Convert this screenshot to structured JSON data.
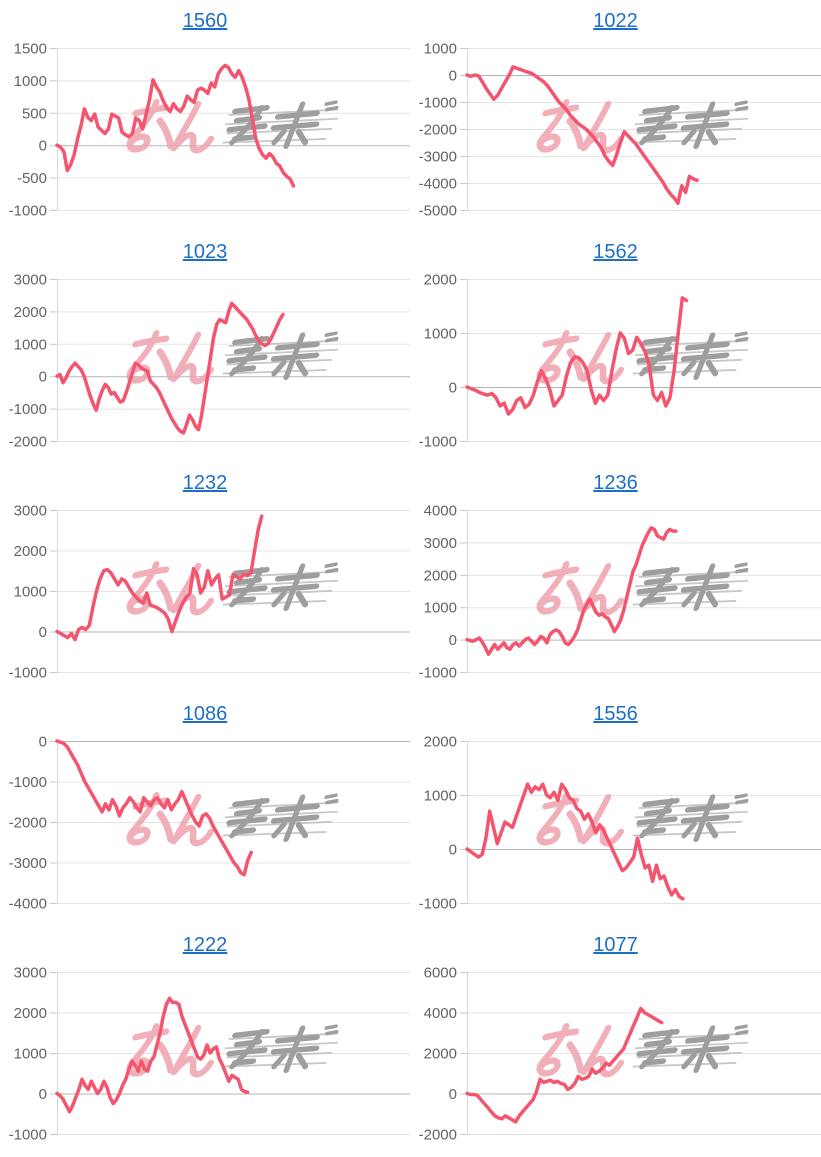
{
  "colors": {
    "line": "#f4556e",
    "title_link": "#1c6fc8",
    "tick_label": "#646464",
    "grid": "#e4e4e4",
    "grid_zero": "#b5b5b5",
    "axis": "#d9d9d9",
    "tick_stub": "#c9c9c9",
    "watermark_pink": "#efa3ad",
    "watermark_gray": "#9e9e9e",
    "watermark_speedline": "#c2c2c2"
  },
  "watermark": {
    "name": "site-watermark"
  },
  "chart_data": [
    {
      "type": "line",
      "title": "1560",
      "ylim": [
        -1000,
        1500
      ],
      "y_ticks": [
        1500,
        1000,
        500,
        0,
        -500,
        -1000
      ],
      "span": 0.67,
      "xlabel": "",
      "ylabel": "",
      "legend": "none",
      "grid": "horizontal",
      "values": [
        0,
        -30,
        -100,
        -390,
        -300,
        -150,
        100,
        300,
        560,
        430,
        380,
        480,
        280,
        230,
        180,
        250,
        480,
        450,
        420,
        200,
        160,
        130,
        180,
        420,
        380,
        250,
        480,
        700,
        1010,
        900,
        820,
        680,
        580,
        520,
        640,
        560,
        520,
        600,
        760,
        700,
        660,
        850,
        880,
        850,
        800,
        960,
        900,
        1100,
        1180,
        1230,
        1200,
        1100,
        1050,
        1150,
        1050,
        900,
        700,
        400,
        100,
        -50,
        -150,
        -200,
        -130,
        -180,
        -280,
        -320,
        -420,
        -480,
        -520,
        -630
      ]
    },
    {
      "type": "line",
      "title": "1022",
      "ylim": [
        -5000,
        1000
      ],
      "y_ticks": [
        1000,
        0,
        -1000,
        -2000,
        -3000,
        -4000,
        -5000
      ],
      "span": 0.65,
      "xlabel": "",
      "ylabel": "",
      "legend": "none",
      "grid": "horizontal",
      "values": [
        0,
        -50,
        0,
        -30,
        -250,
        -500,
        -700,
        -900,
        -750,
        -500,
        -250,
        0,
        300,
        250,
        200,
        150,
        100,
        50,
        -50,
        -150,
        -250,
        -400,
        -600,
        -800,
        -1000,
        -1150,
        -1300,
        -1500,
        -1650,
        -1800,
        -1900,
        -2000,
        -2150,
        -2300,
        -2500,
        -2700,
        -3000,
        -3200,
        -3350,
        -2950,
        -2500,
        -2100,
        -2250,
        -2400,
        -2550,
        -2750,
        -2950,
        -3150,
        -3350,
        -3550,
        -3750,
        -3950,
        -4200,
        -4400,
        -4550,
        -4750,
        -4100,
        -4350,
        -3750,
        -3850,
        -3900
      ]
    },
    {
      "type": "line",
      "title": "1023",
      "ylim": [
        -2000,
        3000
      ],
      "y_ticks": [
        3000,
        2000,
        1000,
        0,
        -1000,
        -2000
      ],
      "span": 0.64,
      "xlabel": "",
      "ylabel": "",
      "legend": "none",
      "grid": "horizontal",
      "values": [
        0,
        50,
        -200,
        -50,
        150,
        300,
        400,
        300,
        200,
        0,
        -300,
        -600,
        -850,
        -1050,
        -700,
        -450,
        -250,
        -350,
        -550,
        -500,
        -650,
        -800,
        -750,
        -500,
        -200,
        100,
        400,
        350,
        250,
        200,
        150,
        -150,
        -250,
        -350,
        -500,
        -700,
        -900,
        -1100,
        -1300,
        -1450,
        -1600,
        -1700,
        -1750,
        -1500,
        -1200,
        -1350,
        -1550,
        -1650,
        -1200,
        -600,
        0,
        600,
        1200,
        1600,
        1750,
        1700,
        1650,
        2000,
        2250,
        2150,
        2050,
        1950,
        1850,
        1750,
        1600,
        1450,
        1250,
        1100,
        1000,
        950,
        1000,
        1150,
        1350,
        1550,
        1750,
        1900
      ]
    },
    {
      "type": "line",
      "title": "1562",
      "ylim": [
        -1000,
        2000
      ],
      "y_ticks": [
        2000,
        1000,
        0,
        -1000
      ],
      "span": 0.62,
      "xlabel": "",
      "ylabel": "",
      "legend": "none",
      "grid": "horizontal",
      "values": [
        0,
        -30,
        -60,
        -100,
        -130,
        -150,
        -120,
        -200,
        -350,
        -300,
        -500,
        -420,
        -250,
        -200,
        -380,
        -320,
        -150,
        100,
        300,
        150,
        -50,
        -350,
        -250,
        -150,
        200,
        450,
        560,
        540,
        450,
        300,
        -50,
        -300,
        -150,
        -250,
        -150,
        300,
        700,
        1000,
        900,
        620,
        680,
        920,
        800,
        650,
        400,
        -150,
        -250,
        -100,
        -350,
        -200,
        300,
        1000,
        1650,
        1600
      ]
    },
    {
      "type": "line",
      "title": "1232",
      "ylim": [
        -1000,
        3000
      ],
      "y_ticks": [
        3000,
        2000,
        1000,
        0,
        -1000
      ],
      "span": 0.58,
      "xlabel": "",
      "ylabel": "",
      "legend": "none",
      "grid": "horizontal",
      "values": [
        0,
        -50,
        -100,
        -150,
        -50,
        -200,
        50,
        100,
        50,
        150,
        600,
        1000,
        1300,
        1500,
        1530,
        1450,
        1300,
        1150,
        1300,
        1250,
        1100,
        950,
        850,
        750,
        700,
        950,
        650,
        620,
        580,
        520,
        450,
        300,
        0,
        250,
        500,
        700,
        850,
        950,
        1550,
        1400,
        950,
        1100,
        1500,
        1150,
        1300,
        1400,
        800,
        850,
        900,
        1400,
        1350,
        1300,
        1420,
        1380,
        1450,
        2000,
        2500,
        2850
      ]
    },
    {
      "type": "line",
      "title": "1236",
      "ylim": [
        -1000,
        4000
      ],
      "y_ticks": [
        4000,
        3000,
        2000,
        1000,
        0,
        -1000
      ],
      "span": 0.59,
      "xlabel": "",
      "ylabel": "",
      "legend": "none",
      "grid": "horizontal",
      "values": [
        0,
        -30,
        -50,
        0,
        50,
        -80,
        -250,
        -450,
        -300,
        -150,
        -300,
        -200,
        -100,
        -250,
        -300,
        -150,
        -100,
        -200,
        -100,
        0,
        50,
        -50,
        -150,
        -50,
        100,
        50,
        -100,
        150,
        250,
        300,
        250,
        100,
        -100,
        -150,
        -50,
        100,
        300,
        600,
        900,
        1100,
        1250,
        1050,
        850,
        750,
        800,
        700,
        650,
        450,
        250,
        400,
        600,
        900,
        1300,
        1700,
        2100,
        2300,
        2600,
        2900,
        3100,
        3300,
        3450,
        3400,
        3200,
        3150,
        3100,
        3300,
        3400,
        3350,
        3350
      ]
    },
    {
      "type": "line",
      "title": "1086",
      "ylim": [
        -4000,
        0
      ],
      "y_ticks": [
        0,
        -1000,
        -2000,
        -3000,
        -4000
      ],
      "span": 0.55,
      "xlabel": "",
      "ylabel": "",
      "legend": "none",
      "grid": "horizontal",
      "values": [
        0,
        -30,
        -60,
        -150,
        -300,
        -450,
        -600,
        -800,
        -1000,
        -1150,
        -1300,
        -1450,
        -1600,
        -1750,
        -1550,
        -1700,
        -1450,
        -1600,
        -1850,
        -1650,
        -1550,
        -1400,
        -1500,
        -1650,
        -1750,
        -1400,
        -1500,
        -1600,
        -1450,
        -1400,
        -1550,
        -1650,
        -1450,
        -1700,
        -1550,
        -1450,
        -1250,
        -1450,
        -1650,
        -1850,
        -2000,
        -2100,
        -1850,
        -1800,
        -1900,
        -2100,
        -2250,
        -2400,
        -2550,
        -2700,
        -2850,
        -3000,
        -3100,
        -3250,
        -3300,
        -2950,
        -2750
      ]
    },
    {
      "type": "line",
      "title": "1556",
      "ylim": [
        -1000,
        2000
      ],
      "y_ticks": [
        2000,
        1000,
        0,
        -1000
      ],
      "span": 0.61,
      "xlabel": "",
      "ylabel": "",
      "legend": "none",
      "grid": "horizontal",
      "values": [
        0,
        -50,
        -100,
        -150,
        -100,
        200,
        700,
        400,
        100,
        300,
        500,
        450,
        400,
        600,
        800,
        1000,
        1200,
        1050,
        1150,
        1100,
        1200,
        1000,
        950,
        1050,
        900,
        1200,
        1100,
        950,
        900,
        750,
        700,
        550,
        650,
        500,
        300,
        450,
        350,
        200,
        50,
        -100,
        -250,
        -400,
        -350,
        -250,
        -150,
        200,
        -100,
        -350,
        -300,
        -600,
        -300,
        -550,
        -500,
        -700,
        -850,
        -750,
        -880,
        -920
      ]
    },
    {
      "type": "line",
      "title": "1222",
      "ylim": [
        -1000,
        3000
      ],
      "y_ticks": [
        3000,
        2000,
        1000,
        0,
        -1000
      ],
      "span": 0.54,
      "xlabel": "",
      "ylabel": "",
      "legend": "none",
      "grid": "horizontal",
      "values": [
        0,
        -50,
        -150,
        -300,
        -450,
        -300,
        -100,
        100,
        350,
        200,
        100,
        300,
        150,
        0,
        100,
        300,
        150,
        -100,
        -250,
        -150,
        0,
        200,
        350,
        600,
        800,
        700,
        550,
        800,
        600,
        550,
        800,
        900,
        1200,
        1500,
        1900,
        2200,
        2350,
        2250,
        2250,
        2200,
        1900,
        1700,
        1500,
        1300,
        1100,
        900,
        850,
        950,
        1200,
        1000,
        1100,
        1150,
        850,
        700,
        500,
        300,
        450,
        400,
        350,
        100,
        50,
        30
      ]
    },
    {
      "type": "line",
      "title": "1077",
      "ylim": [
        -2000,
        6000
      ],
      "y_ticks": [
        6000,
        4000,
        2000,
        0,
        -2000
      ],
      "span": 0.55,
      "xlabel": "",
      "ylabel": "",
      "legend": "none",
      "grid": "horizontal",
      "values": [
        0,
        -50,
        -50,
        -100,
        -300,
        -500,
        -700,
        -900,
        -1100,
        -1200,
        -1250,
        -1100,
        -1200,
        -1300,
        -1400,
        -1100,
        -900,
        -700,
        -500,
        -300,
        100,
        700,
        550,
        600,
        650,
        550,
        600,
        500,
        450,
        200,
        300,
        500,
        850,
        700,
        750,
        850,
        1200,
        1000,
        1100,
        1250,
        1500,
        1400,
        1600,
        1800,
        2000,
        2200,
        2600,
        3000,
        3400,
        3800,
        4200,
        4000,
        3900,
        3800,
        3700,
        3600,
        3500
      ]
    }
  ]
}
